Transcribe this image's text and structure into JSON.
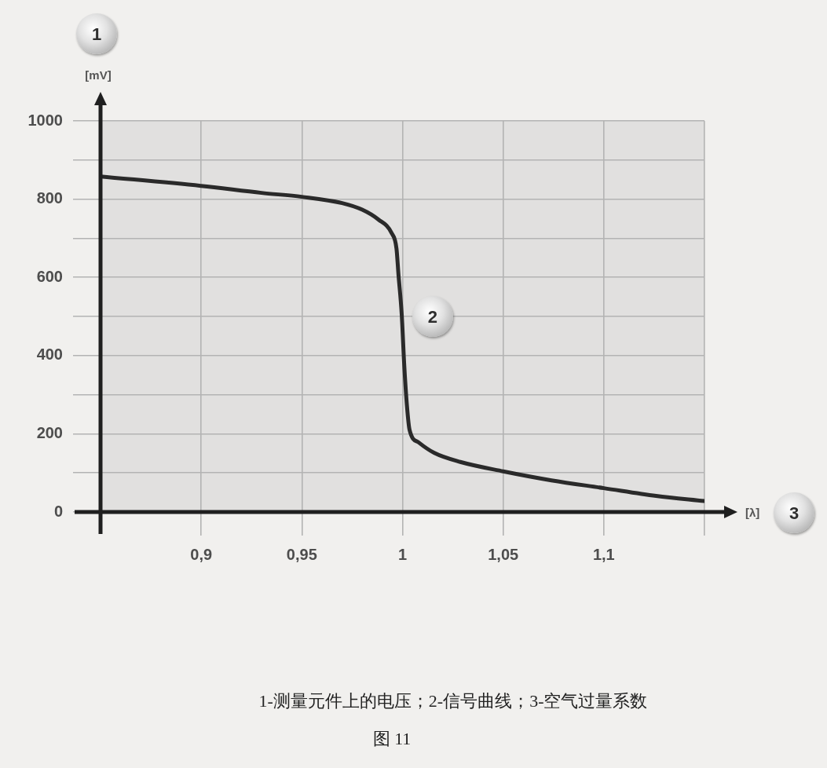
{
  "chart_data": {
    "type": "line",
    "xlabel": "[λ]",
    "ylabel": "[mV]",
    "annotations": [
      "1",
      "2",
      "3",
      "1-测量元件上的电压；2-信号曲线；3-空气过量系数",
      "图 11"
    ],
    "x": [
      0.85,
      0.9,
      0.93,
      0.95,
      0.97,
      0.98,
      0.988,
      0.9945,
      0.997,
      0.998,
      0.9996,
      1.0009,
      1.0022,
      1.0035,
      1.008,
      1.0158,
      1.0287,
      1.05,
      1.074,
      1.1,
      1.126,
      1.15
    ],
    "values": [
      858,
      834,
      816,
      806,
      790,
      773,
      748,
      714,
      674,
      607,
      506,
      372,
      272,
      210,
      178,
      151,
      128,
      104,
      81,
      61,
      41,
      28
    ],
    "color": "#2a2a2a",
    "xlim": [
      0.85,
      1.15
    ],
    "ylim": [
      0,
      1000
    ],
    "xticks": [
      {
        "value": 0.9,
        "label": "0,9"
      },
      {
        "value": 0.95,
        "label": "0,95"
      },
      1,
      {
        "value": 1.05,
        "label": "1,05"
      },
      {
        "value": 1.1,
        "label": "1,1"
      },
      {
        "value": 1.15,
        "label": null
      }
    ],
    "yticks": [
      0,
      {
        "value": 100,
        "label": null
      },
      200,
      {
        "value": 300,
        "label": null
      },
      400,
      {
        "value": 500,
        "label": null
      },
      600,
      {
        "value": 700,
        "label": null
      },
      800,
      {
        "value": 900,
        "label": null
      },
      1000
    ],
    "grid": true
  }
}
